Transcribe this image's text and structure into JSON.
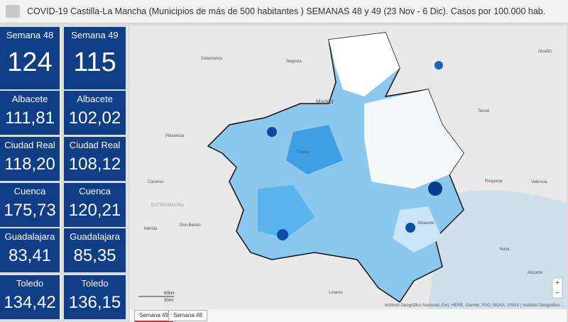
{
  "header": {
    "title": "COVID-19 Castilla-La Mancha (Municipios de más de 500 habitantes ) SEMANAS 48 y 49 (23 Nov - 6 Dic). Casos por 100.000 hab."
  },
  "cards": [
    [
      {
        "label": "Semana 48",
        "value": "124"
      },
      {
        "label": "Semana 49",
        "value": "115"
      }
    ],
    [
      {
        "label": "Albacete",
        "value": "111,81"
      },
      {
        "label": "Albacete",
        "value": "102,02"
      }
    ],
    [
      {
        "label": "Ciudad Real",
        "value": "118,20"
      },
      {
        "label": "Ciudad Real",
        "value": "108,12"
      }
    ],
    [
      {
        "label": "Cuenca",
        "value": "175,73"
      },
      {
        "label": "Cuenca",
        "value": "120,21"
      }
    ],
    [
      {
        "label": "Guadalajara",
        "value": "83,41"
      },
      {
        "label": "Guadalajara",
        "value": "85,35"
      }
    ],
    [
      {
        "label": "Toledo",
        "value": "134,42"
      },
      {
        "label": "Toledo",
        "value": "136,15"
      }
    ]
  ],
  "map": {
    "places": [
      "Salamanca",
      "Segovia",
      "Madrid",
      "Plasencia",
      "Cáceres",
      "EXTREMADURA",
      "Mérida",
      "Don Benito",
      "Teruel",
      "Valencia",
      "Requena",
      "Alicante",
      "Yecla",
      "Toledo",
      "Albacete",
      "Alcañiz",
      "Linares"
    ],
    "scale": [
      "60km",
      "30mi"
    ],
    "attribution": "Instituto Geográfico Nacional, Esri, HERE, Garmin, FAO, NOAA, USGS | Instituto Geográfico ..."
  },
  "tabs": [
    "Semana 49",
    "Semana 48"
  ]
}
